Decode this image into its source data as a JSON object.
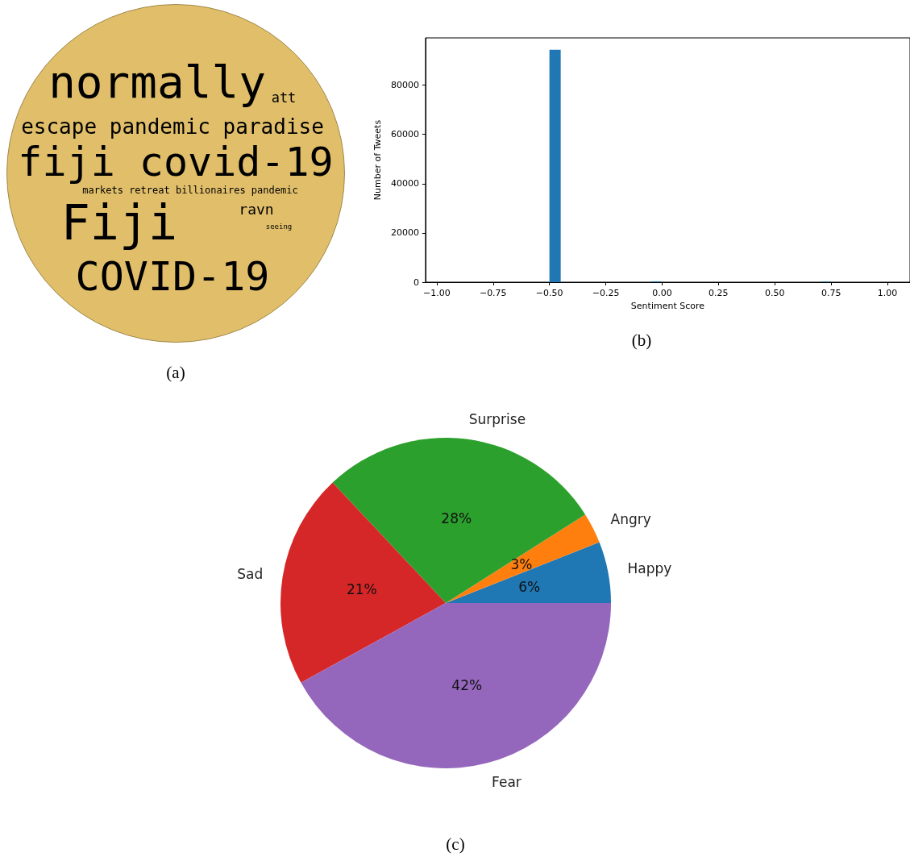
{
  "chart_data": [
    {
      "type": "other",
      "title": "(a)",
      "annotations": [
        "normally",
        "att",
        "escape pandemic paradise",
        "fiji covid-19",
        "markets retreat billionaires pandemic",
        "Fiji",
        "ravn",
        "seeing",
        "COVID-19"
      ],
      "color": "#e0be6a"
    },
    {
      "type": "histogram",
      "title": "(b)",
      "xlabel": "Sentiment Score",
      "ylabel": "Number of Tweets",
      "color": "#1f77b4",
      "bins": [
        -1.0,
        -0.95,
        -0.9,
        -0.85,
        -0.8,
        -0.75,
        -0.7,
        -0.65,
        -0.6,
        -0.55,
        -0.5,
        -0.45,
        -0.4,
        -0.35,
        -0.3,
        -0.25,
        -0.2,
        -0.15,
        -0.1,
        -0.05,
        0.0,
        0.05,
        0.1,
        0.15,
        0.2,
        0.25,
        0.3,
        0.35,
        0.4,
        0.45,
        0.5,
        0.55,
        0.6,
        0.65,
        0.7,
        0.75,
        0.8,
        0.85,
        0.9,
        0.95,
        1.0
      ],
      "values": [
        0,
        0,
        0,
        0,
        0,
        0,
        0,
        0,
        0,
        0,
        94400,
        0,
        0,
        0,
        0,
        0,
        0,
        0,
        0,
        300,
        0,
        0,
        0,
        0,
        0,
        0,
        0,
        0,
        0,
        0,
        0,
        0,
        0,
        0,
        200,
        0,
        0,
        0,
        0,
        0
      ],
      "xlim": [
        -1.05,
        1.1
      ],
      "ylim": [
        0,
        99200
      ],
      "xticks": [
        {
          "value": -1,
          "label": "−1.00"
        },
        {
          "value": -0.75,
          "label": "−0.75"
        },
        {
          "value": -0.5,
          "label": "−0.50"
        },
        {
          "value": -0.25,
          "label": "−0.25"
        },
        {
          "value": 0,
          "label": "0.00"
        },
        {
          "value": 0.25,
          "label": "0.25"
        },
        {
          "value": 0.5,
          "label": "0.50"
        },
        {
          "value": 0.75,
          "label": "0.75"
        },
        {
          "value": 1,
          "label": "1.00"
        }
      ],
      "yticks": [
        0,
        20000,
        40000,
        60000,
        80000
      ],
      "grid": false,
      "legend": false
    },
    {
      "type": "pie",
      "title": "(c)",
      "categories": [
        "Happy",
        "Angry",
        "Surprise",
        "Sad",
        "Fear"
      ],
      "values": [
        6,
        3,
        28,
        21,
        42
      ],
      "colors": [
        "#1f77b4",
        "#ff7f0e",
        "#2ca02c",
        "#d62728",
        "#9467bd"
      ],
      "value_labels": [
        "6%",
        "3%",
        "28%",
        "21%",
        "42%"
      ],
      "legend": false
    }
  ]
}
